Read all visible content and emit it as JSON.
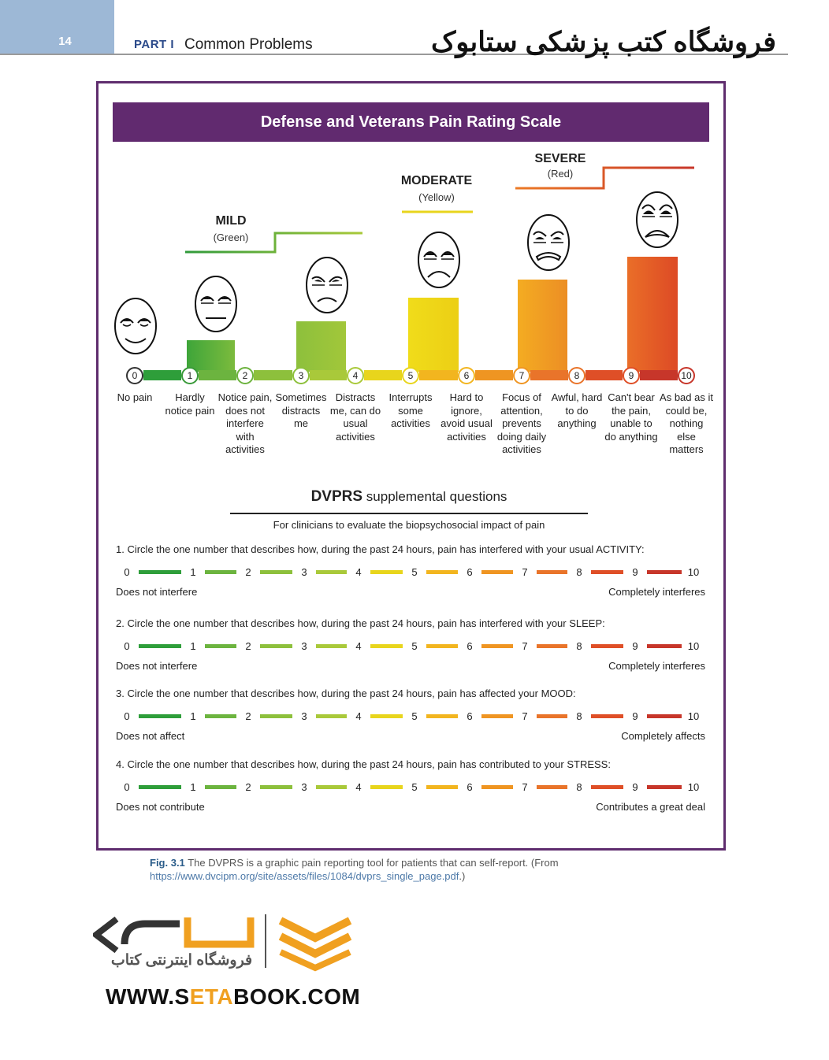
{
  "header": {
    "page_number": "14",
    "part_label": "PART I",
    "chapter_title": "Common Problems",
    "shop_title": "فروشگاه کتب پزشکی ستابوک"
  },
  "scale": {
    "title": "Defense and Veterans Pain Rating Scale",
    "severity": [
      {
        "name": "MILD",
        "color_label": "(Green)"
      },
      {
        "name": "MODERATE",
        "color_label": "(Yellow)"
      },
      {
        "name": "SEVERE",
        "color_label": "(Red)"
      }
    ],
    "levels": [
      {
        "n": "0",
        "desc": "No pain",
        "color": "#333333"
      },
      {
        "n": "1",
        "desc": "Hardly notice pain",
        "color": "#3a9a3a"
      },
      {
        "n": "2",
        "desc": "Notice pain, does not interfere with activities",
        "color": "#6db33f"
      },
      {
        "n": "3",
        "desc": "Sometimes distracts me",
        "color": "#8dc03c"
      },
      {
        "n": "4",
        "desc": "Distracts me, can do usual activities",
        "color": "#a9c93a"
      },
      {
        "n": "5",
        "desc": "Interrupts some activities",
        "color": "#e8d51c"
      },
      {
        "n": "6",
        "desc": "Hard to ignore, avoid usual activities",
        "color": "#f2b51f"
      },
      {
        "n": "7",
        "desc": "Focus of attention, prevents doing daily activities",
        "color": "#ef9522"
      },
      {
        "n": "8",
        "desc": "Awful, hard to do anything",
        "color": "#e9742a"
      },
      {
        "n": "9",
        "desc": "Can't bear the pain, unable to do anything",
        "color": "#df4f27"
      },
      {
        "n": "10",
        "desc": "As bad as it could be, nothing else matters",
        "color": "#c7362a"
      }
    ]
  },
  "supplemental": {
    "title_bold": "DVPRS",
    "title_rest": "supplemental questions",
    "subtitle": "For clinicians to evaluate the biopsychosocial impact of pain",
    "questions": [
      {
        "text": "1. Circle the one number that describes how, during the past 24 hours, pain has interfered with your usual ACTIVITY:",
        "left": "Does not interfere",
        "right": "Completely interferes"
      },
      {
        "text": "2. Circle the one number that describes how, during the past 24 hours, pain has interfered with your SLEEP:",
        "left": "Does not interfere",
        "right": "Completely interferes"
      },
      {
        "text": "3. Circle the one number that describes how, during the past 24 hours, pain has affected your MOOD:",
        "left": "Does not affect",
        "right": "Completely affects"
      },
      {
        "text": "4. Circle the one number that describes how, during the past 24 hours, pain has contributed to your STRESS:",
        "left": "Does not contribute",
        "right": "Contributes a great deal"
      }
    ]
  },
  "caption": {
    "fig": "Fig. 3.1",
    "text": "The DVPRS is a graphic pain reporting tool for patients that can self-report. (From ",
    "link": "https://www.dvcipm.org/site/assets/files/1084/dvprs_single_page.pdf",
    "end": ".)"
  },
  "logo": {
    "subtitle": "فروشگاه اینترنتی کتاب",
    "url_pre": "WWW.S",
    "url_hl": "ETA",
    "url_post": "BOOK.COM"
  }
}
